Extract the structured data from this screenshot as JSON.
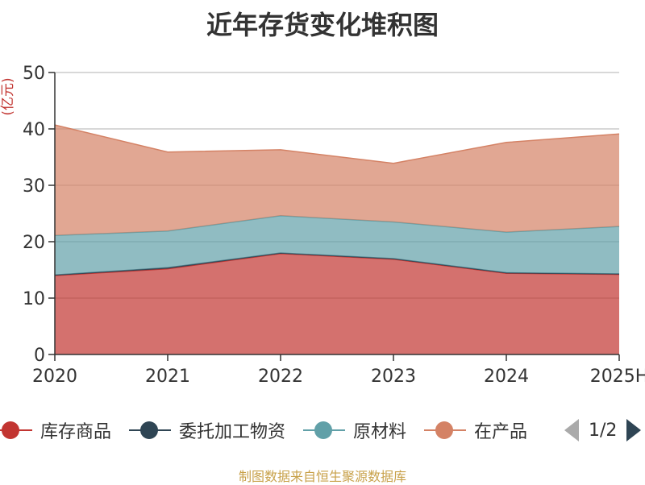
{
  "title": "近年存货变化堆积图",
  "source": "制图数据来自恒生聚源数据库",
  "legend_page": "1/2",
  "chart_data": {
    "type": "area",
    "stacked": true,
    "unit_label": "(亿元)",
    "categories": [
      "2020",
      "2021",
      "2022",
      "2023",
      "2024",
      "2025H"
    ],
    "ylim": [
      0,
      50
    ],
    "yticks": [
      0,
      10,
      20,
      30,
      40,
      50
    ],
    "grid": true,
    "legend_position": "bottom",
    "series": [
      {
        "name": "库存商品",
        "color": "#c23531",
        "values": [
          14.0,
          15.2,
          17.9,
          16.9,
          14.4,
          14.2
        ]
      },
      {
        "name": "委托加工物资",
        "color": "#2f4554",
        "values": [
          0.1,
          0.2,
          0.1,
          0.1,
          0.1,
          0.1
        ]
      },
      {
        "name": "原材料",
        "color": "#61a0a8",
        "values": [
          7.0,
          6.5,
          6.6,
          6.5,
          7.2,
          8.4
        ]
      },
      {
        "name": "在产品",
        "color": "#d48265",
        "values": [
          19.6,
          14.0,
          11.7,
          10.4,
          15.9,
          16.4
        ]
      }
    ]
  }
}
